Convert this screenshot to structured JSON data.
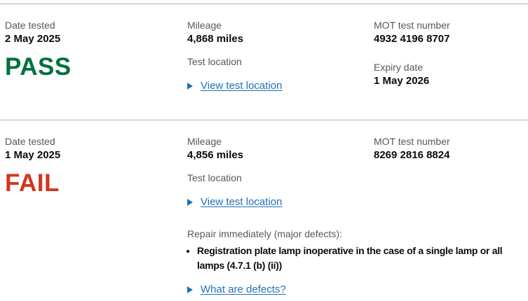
{
  "colors": {
    "label_text": "#505a5f",
    "value_text": "#0b0c0c",
    "pass_green": "#00703c",
    "fail_red": "#d4351e",
    "link_blue": "#1d70b8",
    "divider_gray": "#b1b4b6"
  },
  "labels": {
    "date_tested": "Date tested",
    "mileage": "Mileage",
    "test_location": "Test location",
    "mot_test_number": "MOT test number",
    "expiry_date": "Expiry date",
    "view_test_location": "View test location",
    "repair_immediately": "Repair immediately (major defects):",
    "what_are_defects": "What are defects?"
  },
  "tests": [
    {
      "date": "2 May 2025",
      "result": "PASS",
      "mileage": "4,868 miles",
      "mot_test_number": "4932 4196 8707",
      "expiry_date": "1 May 2026"
    },
    {
      "date": "1 May 2025",
      "result": "FAIL",
      "mileage": "4,856 miles",
      "mot_test_number": "8269 2816 8824",
      "defects": [
        "Registration plate lamp inoperative in the case of a single lamp or all lamps (4.7.1 (b) (ii))"
      ]
    }
  ]
}
